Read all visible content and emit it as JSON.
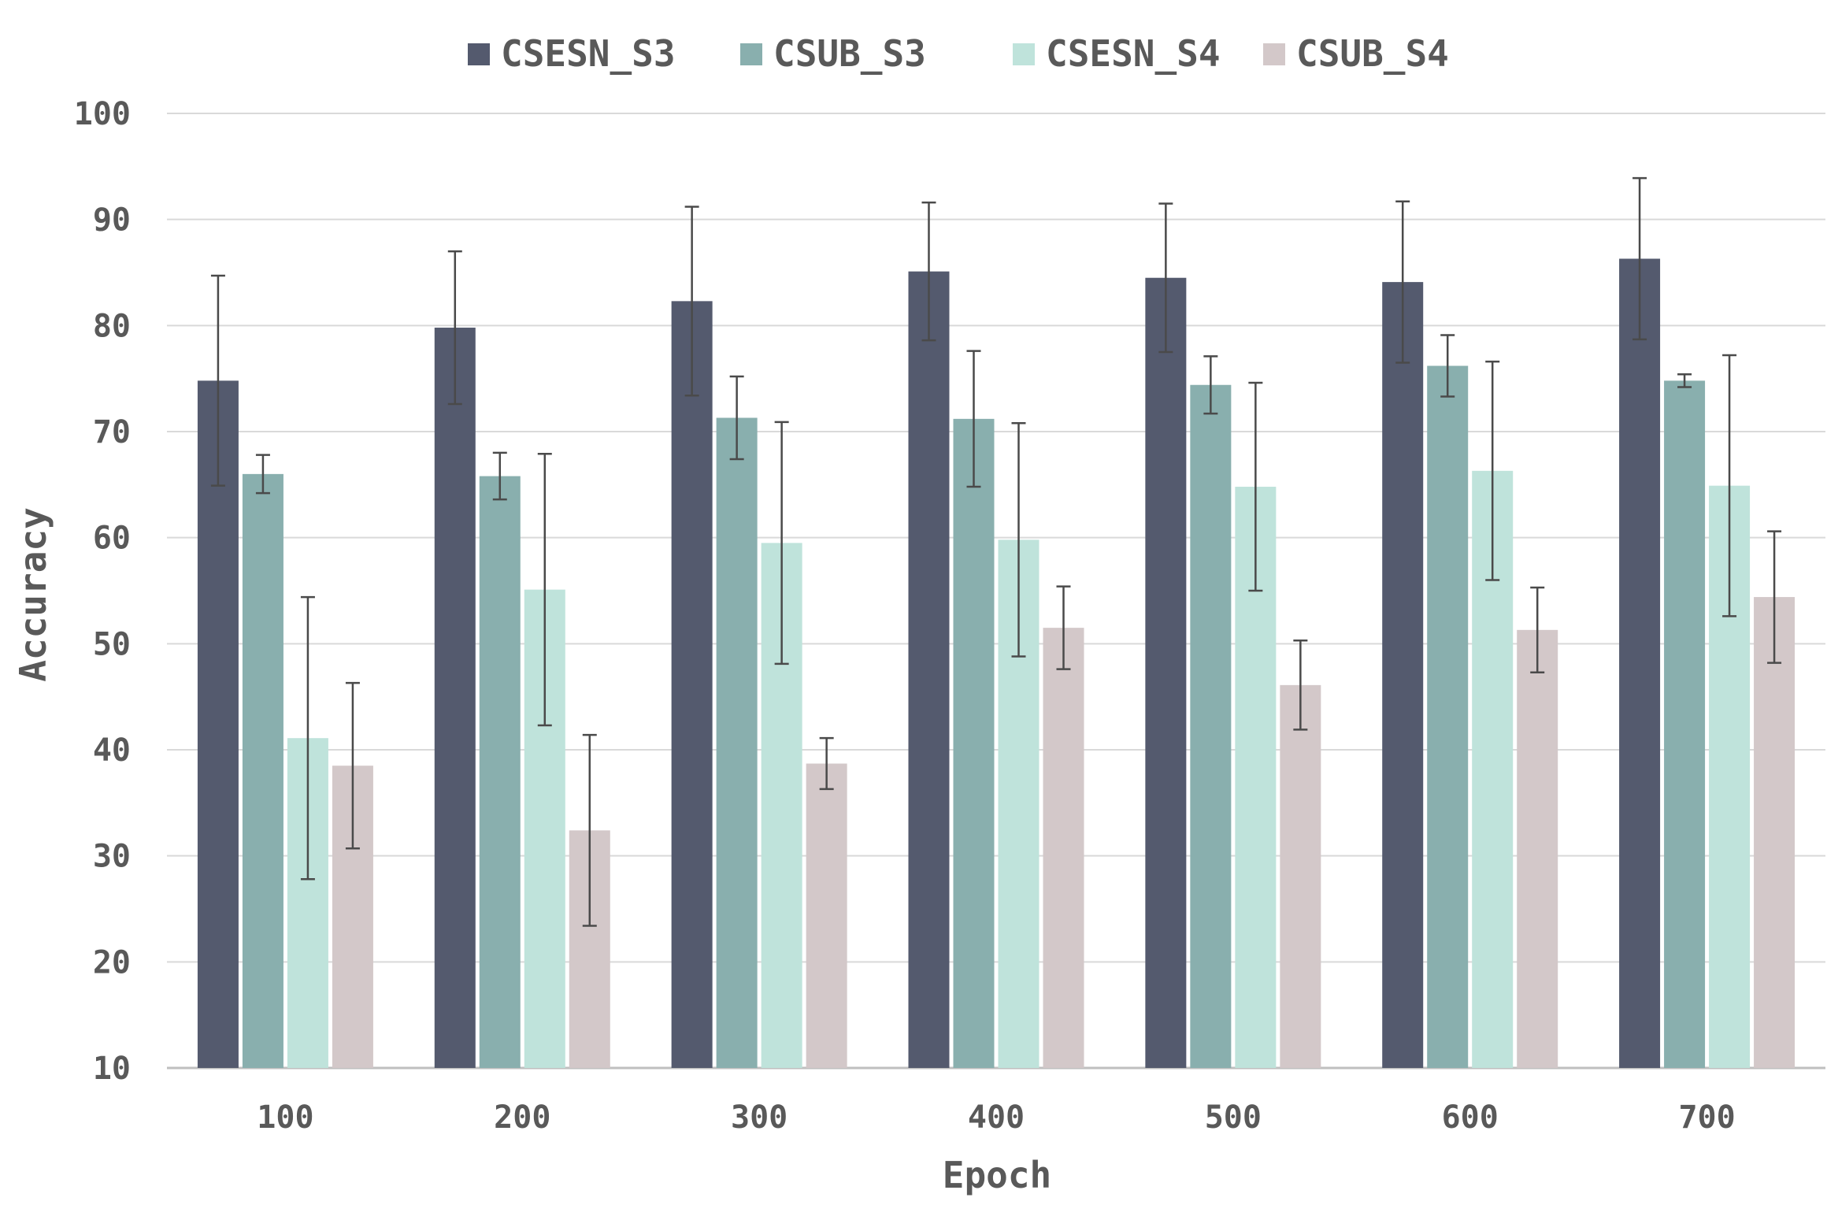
{
  "chart_data": {
    "type": "bar",
    "title": "",
    "xlabel": "Epoch",
    "ylabel": "Accuracy",
    "ylim": [
      10,
      100
    ],
    "yticks": [
      10,
      20,
      30,
      40,
      50,
      60,
      70,
      80,
      90,
      100
    ],
    "grid": true,
    "legend_position": "top-center",
    "categories": [
      "100",
      "200",
      "300",
      "400",
      "500",
      "600",
      "700"
    ],
    "series": [
      {
        "name": "CSESN_S3",
        "color": "#545a6e",
        "values": [
          74.8,
          79.8,
          82.3,
          85.1,
          84.5,
          84.1,
          86.3
        ],
        "errors": [
          9.9,
          7.2,
          8.9,
          6.5,
          7.0,
          7.6,
          7.6
        ]
      },
      {
        "name": "CSUB_S3",
        "color": "#89afae",
        "values": [
          66.0,
          65.8,
          71.3,
          71.2,
          74.4,
          76.2,
          74.8
        ],
        "errors": [
          1.8,
          2.2,
          3.9,
          6.4,
          2.7,
          2.9,
          0.6
        ]
      },
      {
        "name": "CSESN_S4",
        "color": "#bfe3db",
        "values": [
          41.1,
          55.1,
          59.5,
          59.8,
          64.8,
          66.3,
          64.9
        ],
        "errors": [
          13.3,
          12.8,
          11.4,
          11.0,
          9.8,
          10.3,
          12.3
        ]
      },
      {
        "name": "CSUB_S4",
        "color": "#d3c8c9",
        "values": [
          38.5,
          32.4,
          38.7,
          51.5,
          46.1,
          51.3,
          54.4
        ],
        "errors": [
          7.8,
          9.0,
          2.4,
          3.9,
          4.2,
          4.0,
          6.2
        ]
      }
    ]
  }
}
